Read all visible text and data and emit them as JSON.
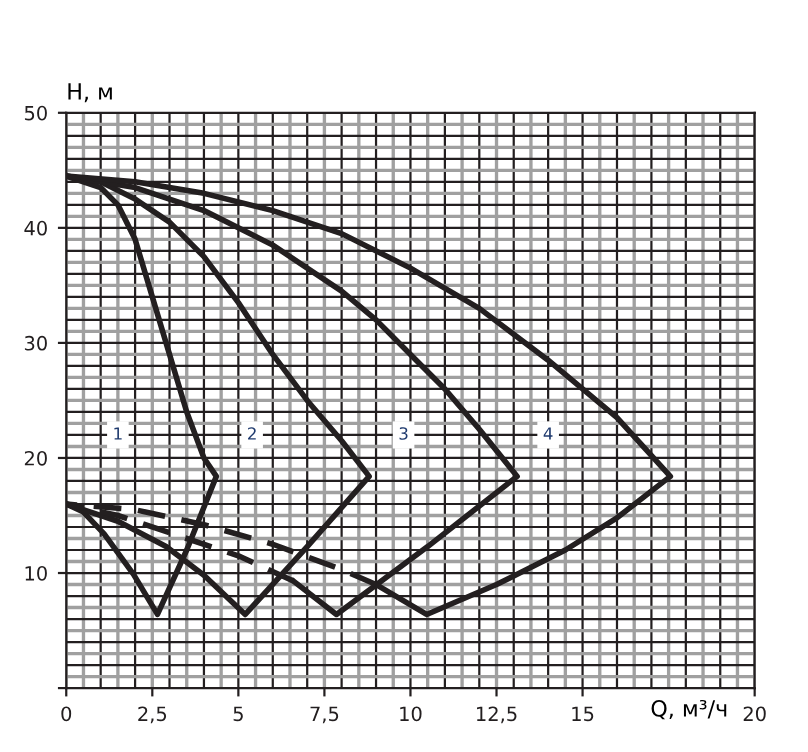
{
  "chart_data": {
    "type": "line",
    "xlabel": "Q, м³/ч",
    "ylabel": "Н, м",
    "xlim": [
      0,
      20
    ],
    "ylim": [
      0,
      50
    ],
    "xticks": [
      0,
      {
        "value": 2.5,
        "label": "2,5"
      },
      5,
      {
        "value": 7.5,
        "label": "7,5"
      },
      10,
      {
        "value": 12.5,
        "label": "12,5"
      },
      15,
      20
    ],
    "yticks": [
      {
        "value": 0,
        "label": null
      },
      10,
      20,
      30,
      40,
      50
    ],
    "grid": true,
    "line_style": "solid",
    "marker": "none",
    "series": [
      {
        "color": "#231f20",
        "x": [
          0,
          1,
          1.5,
          2,
          2.5,
          3,
          3.5,
          4,
          4.36,
          3.5,
          2.65,
          1.95,
          1.1,
          0.5,
          0
        ],
        "values": [
          44.5,
          43.5,
          42,
          39,
          34,
          29,
          24,
          20,
          18.4,
          12,
          6.4,
          9.9,
          13.4,
          15.3,
          16
        ]
      },
      {
        "color": "#231f20",
        "x": [
          0,
          1,
          2,
          3,
          4,
          5,
          6,
          7,
          8,
          8.8,
          7,
          5.2,
          4,
          2.9,
          1.5,
          0
        ],
        "values": [
          44.5,
          44,
          42.5,
          40.5,
          37.5,
          33.5,
          29,
          25,
          21.5,
          18.4,
          12.3,
          6.4,
          9.8,
          12.3,
          14.5,
          16
        ]
      },
      {
        "color": "#231f20",
        "x": [
          0,
          2,
          4,
          6,
          8,
          9,
          10,
          11,
          12,
          13.1,
          10.5,
          7.85,
          6.6
        ],
        "values": [
          44.5,
          43.5,
          41.5,
          38.5,
          34.5,
          32,
          29,
          26,
          22.5,
          18.4,
          12.3,
          6.4,
          9.3
        ]
      },
      {
        "color": "#231f20",
        "line_style": "dashed",
        "x": [
          6.6,
          5,
          3,
          1.5,
          0
        ],
        "values": [
          9.3,
          11.5,
          13.5,
          15,
          16
        ]
      },
      {
        "color": "#231f20",
        "x": [
          0,
          2,
          4,
          6,
          8,
          10,
          12,
          14,
          16,
          17.55,
          16,
          14.5,
          12.5,
          10.47,
          9
        ],
        "values": [
          44.5,
          44,
          43,
          41.5,
          39.5,
          36.5,
          33,
          28.5,
          23.5,
          18.4,
          14.8,
          12,
          9,
          6.4,
          9
        ]
      },
      {
        "color": "#231f20",
        "line_style": "dashed",
        "x": [
          9,
          8,
          6,
          4,
          2,
          0
        ],
        "values": [
          9,
          10.3,
          12.5,
          14.2,
          15.5,
          16
        ]
      }
    ],
    "annotations": [
      {
        "text": "1",
        "x": 1.5,
        "y": 22
      },
      {
        "text": "2",
        "x": 5.4,
        "y": 22
      },
      {
        "text": "3",
        "x": 9.8,
        "y": 22
      },
      {
        "text": "4",
        "x": 14,
        "y": 22
      }
    ]
  }
}
